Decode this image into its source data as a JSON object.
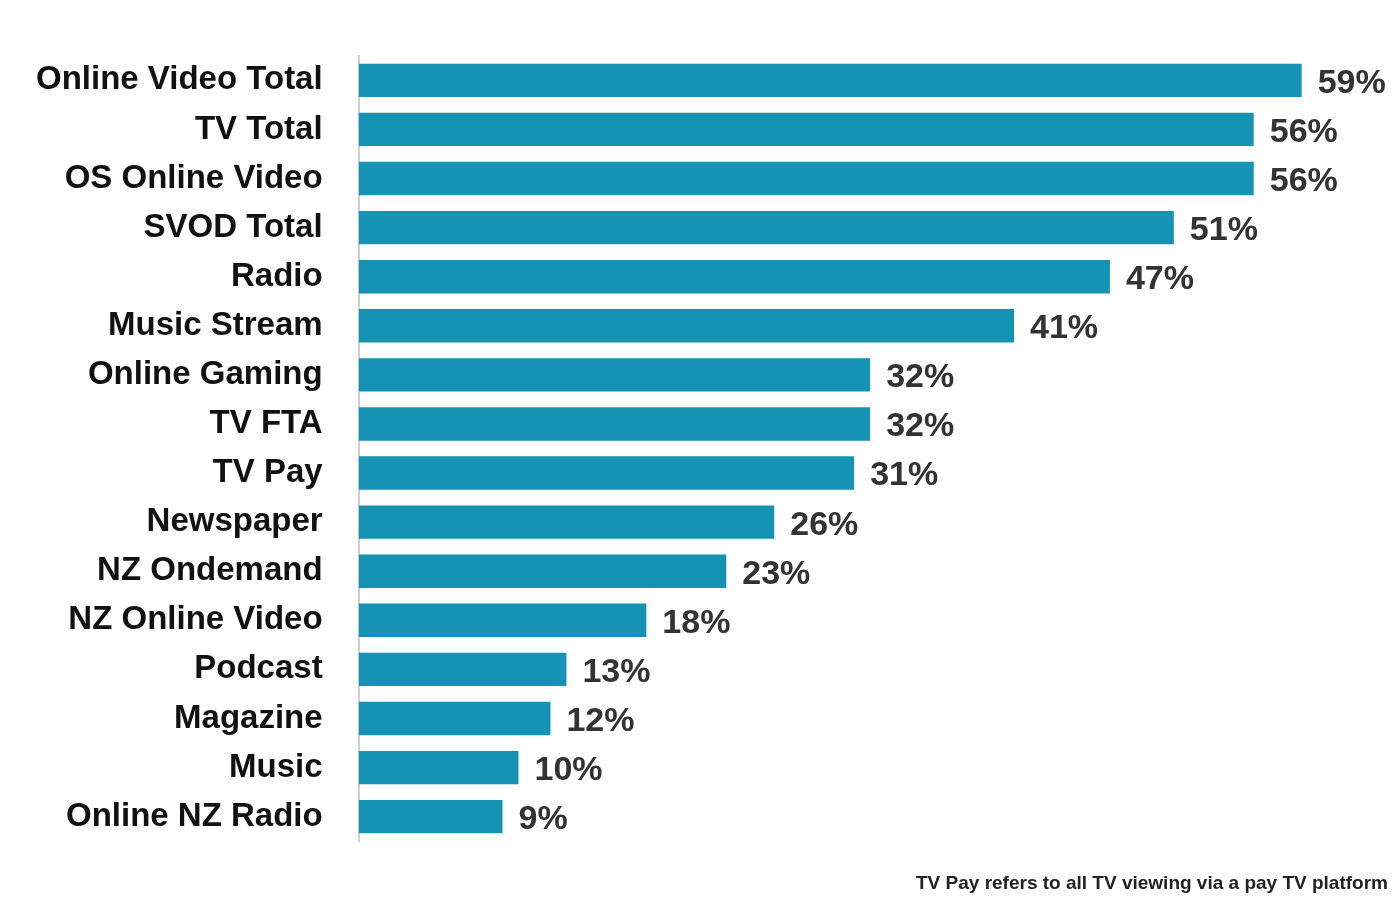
{
  "chart_data": {
    "type": "bar",
    "orientation": "horizontal",
    "categories": [
      "Online Video Total",
      "TV Total",
      "OS Online Video",
      "SVOD Total",
      "Radio",
      "Music Stream",
      "Online Gaming",
      "TV FTA",
      "TV Pay",
      "Newspaper",
      "NZ Ondemand",
      "NZ Online Video",
      "Podcast",
      "Magazine",
      "Music",
      "Online NZ Radio"
    ],
    "values": [
      59,
      56,
      56,
      51,
      47,
      41,
      32,
      32,
      31,
      26,
      23,
      18,
      13,
      12,
      10,
      9
    ],
    "value_labels": [
      "59%",
      "56%",
      "56%",
      "51%",
      "47%",
      "41%",
      "32%",
      "32%",
      "31%",
      "26%",
      "23%",
      "18%",
      "13%",
      "12%",
      "10%",
      "9%"
    ],
    "color": "#1592b4",
    "legend": false,
    "tick_labels": "y",
    "annotations": [
      "TV Pay refers to all TV viewing via a pay TV platform"
    ]
  }
}
